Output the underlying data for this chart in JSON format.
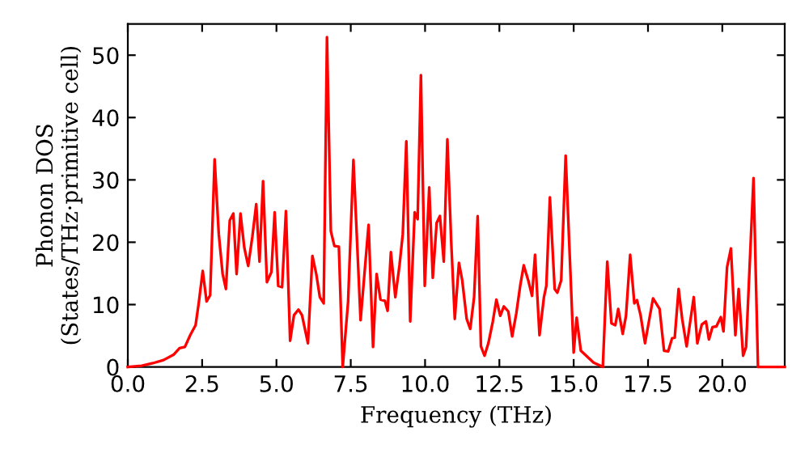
{
  "chart_data": {
    "type": "line",
    "xlabel": "Frequency (THz)",
    "ylabel": "Phonon DOS\n(States/THz·primitive cell)",
    "xlim": [
      0,
      22.1
    ],
    "ylim": [
      0,
      55
    ],
    "xticks": [
      {
        "value": 0,
        "label": "0.0"
      },
      {
        "value": 2.5,
        "label": "2.5"
      },
      {
        "value": 5,
        "label": "5.0"
      },
      {
        "value": 7.5,
        "label": "7.5"
      },
      {
        "value": 10,
        "label": "10.0"
      },
      {
        "value": 12.5,
        "label": "12.5"
      },
      {
        "value": 15,
        "label": "15.0"
      },
      {
        "value": 17.5,
        "label": "17.5"
      },
      {
        "value": 20,
        "label": "20.0"
      }
    ],
    "yticks": [
      0,
      10,
      20,
      30,
      40,
      50
    ],
    "grid": false,
    "marker": "none",
    "line_style": "solid",
    "x": [
      0,
      0.47,
      0.84,
      1.2,
      1.55,
      1.74,
      1.92,
      2.1,
      2.28,
      2.39,
      2.52,
      2.65,
      2.77,
      2.92,
      3.06,
      3.19,
      3.3,
      3.43,
      3.55,
      3.66,
      3.79,
      3.92,
      4.05,
      4.19,
      4.32,
      4.43,
      4.55,
      4.68,
      4.83,
      4.94,
      5.06,
      5.19,
      5.32,
      5.46,
      5.59,
      5.74,
      5.86,
      6.06,
      6.21,
      6.34,
      6.46,
      6.59,
      6.7,
      6.83,
      6.95,
      7.1,
      7.23,
      7.41,
      7.59,
      7.83,
      8.1,
      8.25,
      8.37,
      8.5,
      8.65,
      8.74,
      8.85,
      9.0,
      9.14,
      9.25,
      9.37,
      9.5,
      9.65,
      9.75,
      9.86,
      9.99,
      10.14,
      10.26,
      10.39,
      10.5,
      10.63,
      10.75,
      10.88,
      11.0,
      11.14,
      11.25,
      11.4,
      11.52,
      11.65,
      11.77,
      11.88,
      12.0,
      12.13,
      12.28,
      12.4,
      12.53,
      12.65,
      12.8,
      12.93,
      13.07,
      13.2,
      13.32,
      13.47,
      13.6,
      13.7,
      13.85,
      14.0,
      14.08,
      14.2,
      14.36,
      14.45,
      14.58,
      14.73,
      15.0,
      15.1,
      15.24,
      15.67,
      15.98,
      16.13,
      16.27,
      16.4,
      16.5,
      16.65,
      16.76,
      16.9,
      17.04,
      17.13,
      17.25,
      17.4,
      17.67,
      17.89,
      18.04,
      18.18,
      18.31,
      18.4,
      18.53,
      18.65,
      18.8,
      19.04,
      19.16,
      19.31,
      19.45,
      19.55,
      19.67,
      19.8,
      19.95,
      20.04,
      20.16,
      20.29,
      20.44,
      20.55,
      20.7,
      20.8,
      21.05,
      21.2,
      22.1
    ],
    "series": [
      {
        "color": "#ff0000",
        "values": [
          0,
          0.2,
          0.6,
          1.1,
          2,
          3,
          3.2,
          5.1,
          6.7,
          10.4,
          15.4,
          10.5,
          11.5,
          33.3,
          21.3,
          14.9,
          12.5,
          23.5,
          24.6,
          14.9,
          24.6,
          19.1,
          16.2,
          20.9,
          26.1,
          16.9,
          29.8,
          13.6,
          15.2,
          24.8,
          13,
          12.8,
          25,
          4.2,
          8.3,
          9.2,
          8.3,
          3.8,
          17.8,
          14.9,
          11.2,
          10.2,
          52.9,
          21.8,
          19.4,
          19.3,
          0,
          10.4,
          33.2,
          7.5,
          22.8,
          3.2,
          14.9,
          10.8,
          10.6,
          9,
          18.4,
          11.2,
          16.3,
          21.3,
          36.2,
          7.3,
          24.8,
          23.7,
          46.8,
          13,
          28.8,
          14.3,
          23.1,
          24.2,
          16.9,
          36.5,
          20,
          7.7,
          16.7,
          13.9,
          7.7,
          6.1,
          11.2,
          24.2,
          3.3,
          1.8,
          3.8,
          7.3,
          10.8,
          8.2,
          9.7,
          8.9,
          4.9,
          8.6,
          13,
          16.3,
          13.9,
          11.4,
          18,
          5.1,
          11.2,
          13,
          27.2,
          12.5,
          11.9,
          13.9,
          33.9,
          2.3,
          7.9,
          2.6,
          0.7,
          0,
          16.9,
          7,
          6.7,
          9.3,
          5.3,
          8.2,
          18,
          10.2,
          10.7,
          8.3,
          3.8,
          11,
          9.3,
          2.6,
          2.5,
          4.6,
          4.7,
          12.5,
          7.7,
          3.3,
          11.2,
          3.8,
          6.8,
          7.3,
          4.4,
          6.4,
          6.5,
          8,
          5.7,
          16,
          19,
          5.1,
          12.5,
          1.8,
          3.2,
          30.3,
          0,
          0
        ]
      }
    ]
  }
}
